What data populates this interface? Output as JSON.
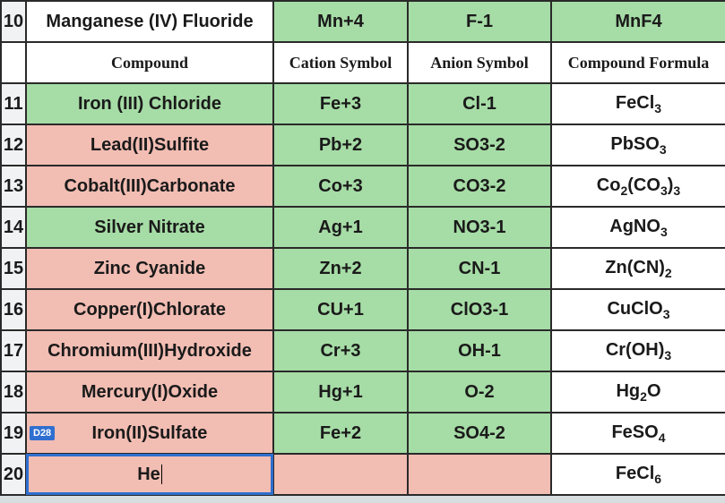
{
  "colors": {
    "green": "#a6dca6",
    "pink": "#f2bdb3",
    "white": "#ffffff",
    "rowhdr_bg": "#f1f2f3",
    "border": "#2a2a2a",
    "dark_red_text": "#7a1f1f",
    "green_text": "#1f6b3a",
    "active_outline": "#2f6fcf"
  },
  "headers": {
    "compound": "Compound",
    "cation": "Cation Symbol",
    "anion": "Anion Symbol",
    "formula": "Compound Formula"
  },
  "top_row": {
    "num": "10",
    "compound": "Manganese (IV) Fluoride",
    "cation": "Mn+4",
    "anion": "F-1",
    "formula": "MnF4"
  },
  "active_cell_ref": "D28",
  "rows": [
    {
      "num": "11",
      "compound": "Iron (III) Chloride",
      "cation": "Fe+3",
      "anion": "Cl-1",
      "formula_html": "FeCl<sub>3</sub>",
      "cls": {
        "compound": "green",
        "cation": "green",
        "anion": "green",
        "formula": "white"
      }
    },
    {
      "num": "12",
      "compound": "Lead(II)Sulfite",
      "cation": "Pb+2",
      "anion": "SO3-2",
      "formula_html": "PbSO<sub>3</sub>",
      "cls": {
        "compound": "pink",
        "cation": "green",
        "anion": "green",
        "formula": "white"
      }
    },
    {
      "num": "13",
      "compound": "Cobalt(III)Carbonate",
      "cation": "Co+3",
      "anion": "CO3-2",
      "formula_html": "Co<sub>2</sub>(CO<sub>3</sub>)<sub>3</sub>",
      "cls": {
        "compound": "pink",
        "cation": "green",
        "anion": "green",
        "formula": "white"
      }
    },
    {
      "num": "14",
      "compound": "Silver Nitrate",
      "cation": "Ag+1",
      "anion": "NO3-1",
      "formula_html": "AgNO<sub>3</sub>",
      "cls": {
        "compound": "green",
        "cation": "green",
        "anion": "green",
        "formula": "white"
      }
    },
    {
      "num": "15",
      "compound": "Zinc Cyanide",
      "compound_text_cls": "dark-text",
      "cation": "Zn+2",
      "anion": "CN-1",
      "formula_html": "Zn(CN)<sub>2</sub>",
      "cls": {
        "compound": "pink",
        "cation": "green",
        "anion": "green",
        "formula": "white"
      }
    },
    {
      "num": "16",
      "compound": "Copper(I)Chlorate",
      "cation": "CU+1",
      "anion": "ClO3-1",
      "formula_html": "CuClO<sub>3</sub>",
      "cls": {
        "compound": "pink",
        "cation": "green",
        "anion": "green",
        "formula": "white"
      }
    },
    {
      "num": "17",
      "compound": "Chromium(III)Hydroxide",
      "cation": "Cr+3",
      "anion": "OH-1",
      "formula_html": "Cr(OH)<sub>3</sub>",
      "cls": {
        "compound": "pink",
        "cation": "green",
        "anion": "green",
        "formula": "white"
      }
    },
    {
      "num": "18",
      "compound": "Mercury(I)Oxide",
      "cation": "Hg+1",
      "anion": "O-2",
      "formula_html": "Hg<sub>2</sub>O",
      "cls": {
        "compound": "pink",
        "cation": "green",
        "anion": "green",
        "formula": "white"
      }
    },
    {
      "num": "19",
      "compound": "Iron(II)Sulfate",
      "cation": "Fe+2",
      "anion": "SO4-2",
      "formula_html": "FeSO<sub>4</sub>",
      "cls": {
        "compound": "pink",
        "cation": "green",
        "anion": "green",
        "formula": "white"
      },
      "has_ref_tag": true
    },
    {
      "num": "20",
      "compound": "He",
      "compound_active": true,
      "cation": "",
      "anion": "",
      "formula_html": "FeCl<sub>6</sub>",
      "cls": {
        "compound": "pink",
        "cation": "pink",
        "anion": "pink",
        "formula": "white"
      }
    }
  ]
}
